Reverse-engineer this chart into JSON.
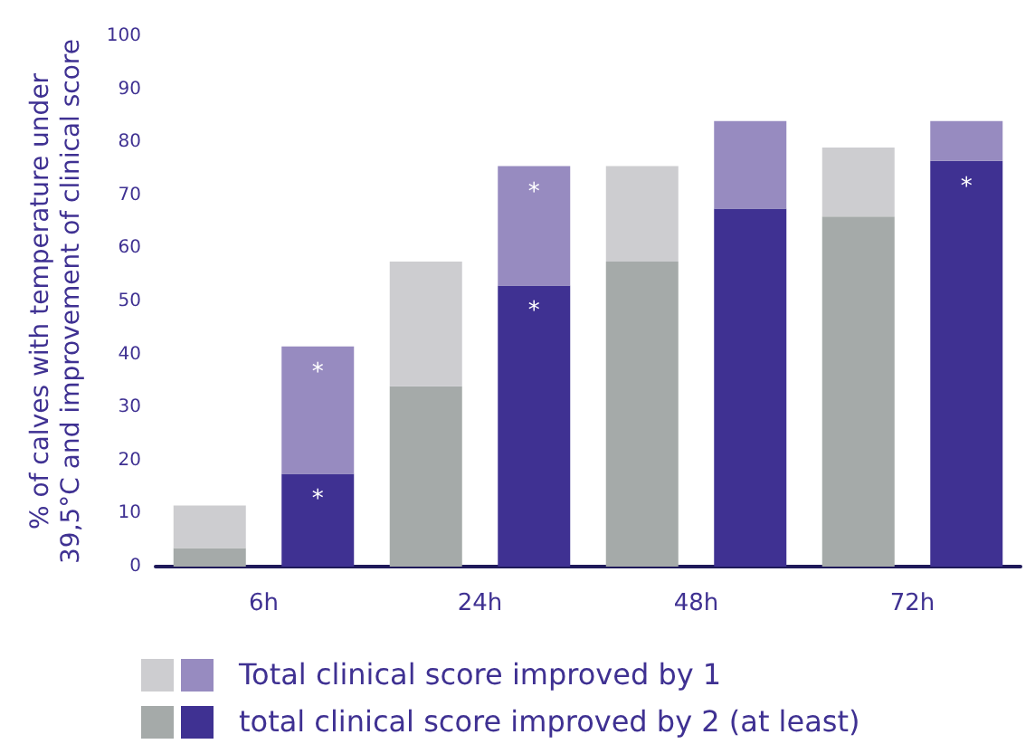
{
  "chart_data": {
    "type": "bar",
    "stacked": true,
    "ylabel": "% of calves with temperature under\n39,5°C and improvement of clinical score",
    "categories": [
      "6h",
      null,
      "24h",
      null,
      "48h",
      null,
      "72h",
      null
    ],
    "series": [
      {
        "name": "total clinical score improved by 2 (at least)",
        "colors": [
          "#a5aaa9",
          "#3f3192",
          "#a5aaa9",
          "#3f3192",
          "#a5aaa9",
          "#3f3192",
          "#a5aaa9",
          "#3f3192"
        ],
        "values": [
          3.5,
          17.5,
          34,
          53,
          57.5,
          67.5,
          66,
          76.5
        ],
        "value_labels": [
          null,
          "*",
          null,
          "*",
          null,
          null,
          null,
          "*"
        ]
      },
      {
        "name": "Total clinical score improved by 1",
        "colors": [
          "#cdcdd0",
          "#978bc0",
          "#cdcdd0",
          "#978bc0",
          "#cdcdd0",
          "#978bc0",
          "#cdcdd0",
          "#978bc0"
        ],
        "values": [
          8,
          24,
          23.5,
          22.5,
          18,
          16.5,
          13,
          7.5
        ],
        "value_labels": [
          null,
          "*",
          null,
          "*",
          null,
          null,
          null,
          null
        ]
      }
    ],
    "ylim": [
      0,
      100
    ],
    "yticks": [
      0,
      10,
      20,
      30,
      40,
      50,
      60,
      70,
      80,
      90,
      100
    ],
    "grid": false,
    "legend": "bottom"
  }
}
